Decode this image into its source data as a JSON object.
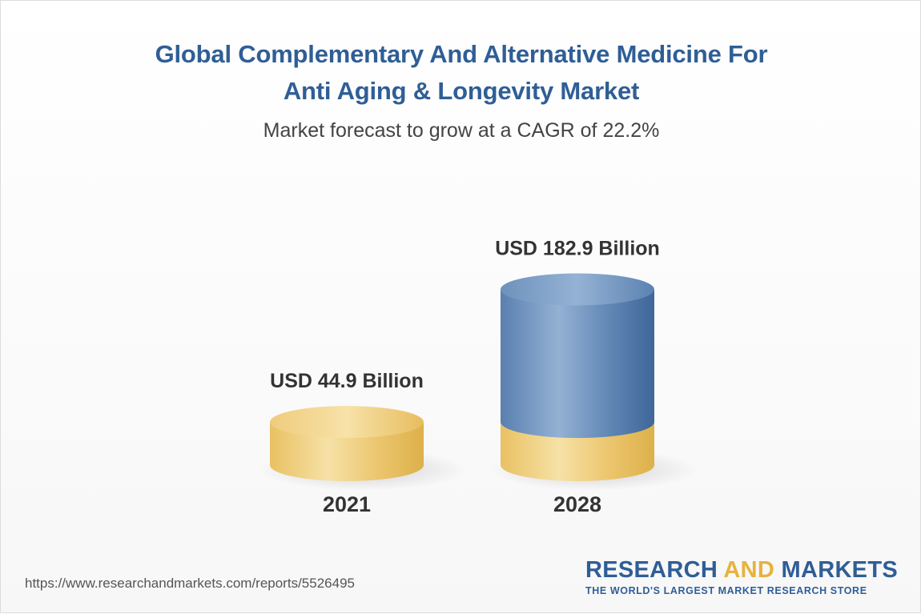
{
  "header": {
    "title_line1": "Global Complementary And Alternative Medicine For",
    "title_line2": "Anti Aging & Longevity Market",
    "subtitle": "Market forecast to grow at a CAGR of 22.2%"
  },
  "chart_data": {
    "type": "bar",
    "title": "Global Complementary And Alternative Medicine For Anti Aging & Longevity Market",
    "subtitle": "Market forecast to grow at a CAGR of 22.2%",
    "categories": [
      "2021",
      "2028"
    ],
    "values": [
      44.9,
      182.9
    ],
    "data_labels": [
      "USD 44.9 Billion",
      "USD 182.9 Billion"
    ],
    "unit": "USD Billion",
    "cagr": "22.2%",
    "xlabel": "",
    "ylabel": "",
    "grid": false,
    "legend": "none",
    "colors": {
      "base": "#e8c266",
      "growth": "#5b82b1"
    }
  },
  "footer": {
    "url": "https://www.researchandmarkets.com/reports/5526495",
    "brand_word1": "RESEARCH",
    "brand_word2": "AND",
    "brand_word3": "MARKETS",
    "tagline": "THE WORLD'S LARGEST MARKET RESEARCH STORE"
  }
}
